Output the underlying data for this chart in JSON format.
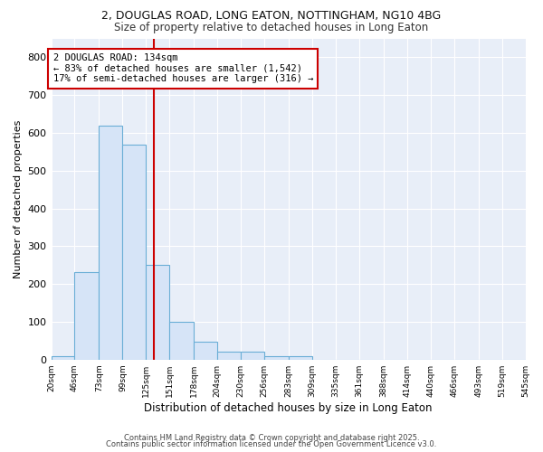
{
  "title_line1": "2, DOUGLAS ROAD, LONG EATON, NOTTINGHAM, NG10 4BG",
  "title_line2": "Size of property relative to detached houses in Long Eaton",
  "xlabel": "Distribution of detached houses by size in Long Eaton",
  "ylabel": "Number of detached properties",
  "bar_edges": [
    20,
    46,
    73,
    99,
    125,
    151,
    178,
    204,
    230,
    256,
    283,
    309,
    335,
    361,
    388,
    414,
    440,
    466,
    493,
    519,
    545
  ],
  "bar_heights": [
    8,
    232,
    618,
    570,
    250,
    100,
    48,
    20,
    20,
    8,
    8,
    0,
    0,
    0,
    0,
    0,
    0,
    0,
    0,
    0
  ],
  "bar_color": "#d6e4f7",
  "bar_edge_color": "#6aaed6",
  "vline_x": 134,
  "vline_color": "#cc0000",
  "annotation_text": "2 DOUGLAS ROAD: 134sqm\n← 83% of detached houses are smaller (1,542)\n17% of semi-detached houses are larger (316) →",
  "annotation_box_color": "#cc0000",
  "annotation_text_color": "#000000",
  "annotation_bg": "#ffffff",
  "ylim": [
    0,
    850
  ],
  "yticks": [
    0,
    100,
    200,
    300,
    400,
    500,
    600,
    700,
    800
  ],
  "background_color": "#e8eef8",
  "grid_color": "#ffffff",
  "footnote1": "Contains HM Land Registry data © Crown copyright and database right 2025.",
  "footnote2": "Contains public sector information licensed under the Open Government Licence v3.0."
}
